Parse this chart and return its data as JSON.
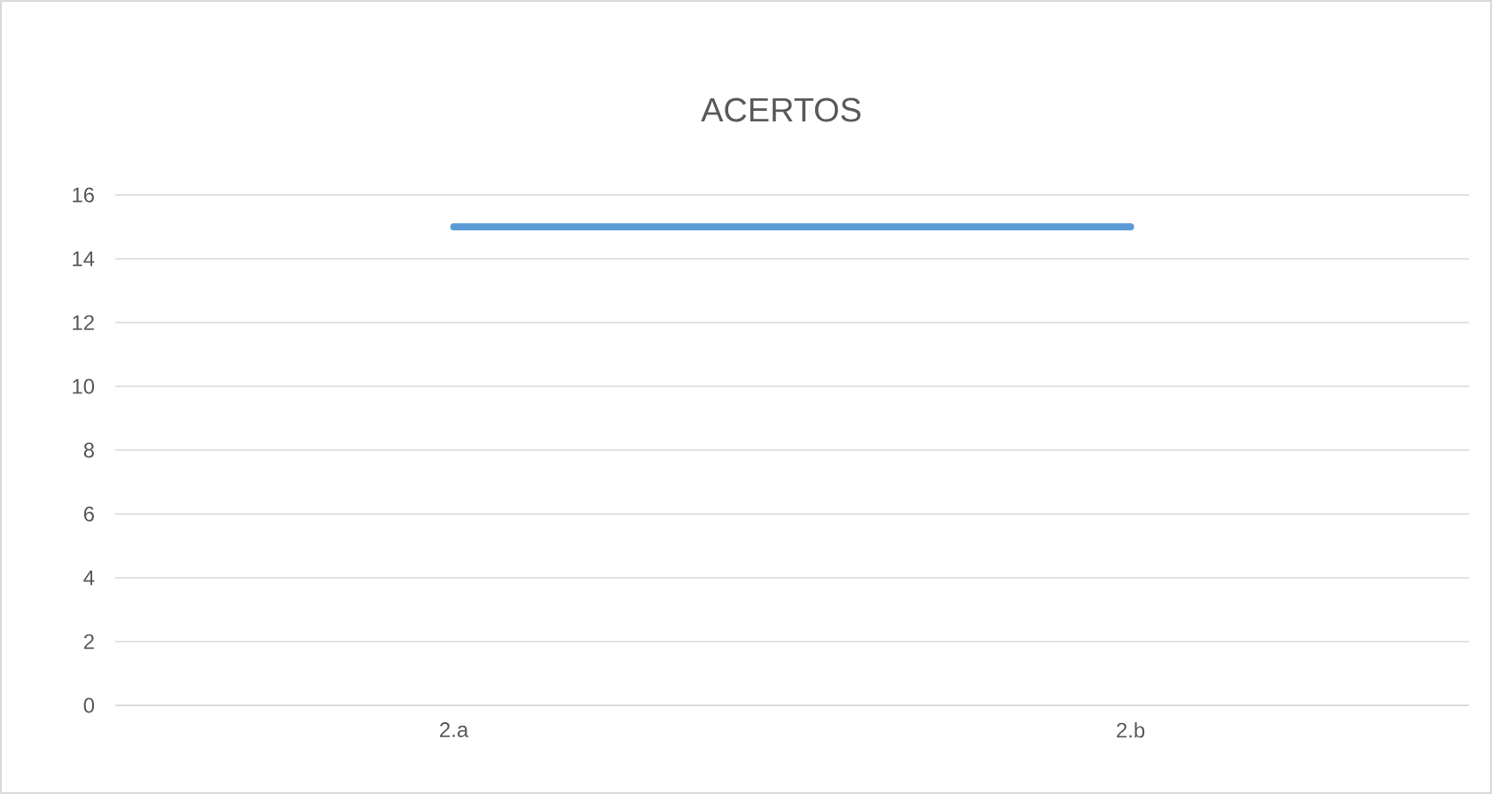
{
  "chart_data": {
    "type": "line",
    "title": "ACERTOS",
    "categories": [
      "2.a",
      "2.b"
    ],
    "series": [
      {
        "color": "#5b9bd5",
        "values": [
          15,
          15
        ]
      }
    ],
    "ylim": [
      0,
      16
    ],
    "yticks": [
      0,
      2,
      4,
      6,
      8,
      10,
      12,
      14,
      16
    ],
    "grid": "y",
    "marker": "none",
    "line_style": "solid"
  }
}
